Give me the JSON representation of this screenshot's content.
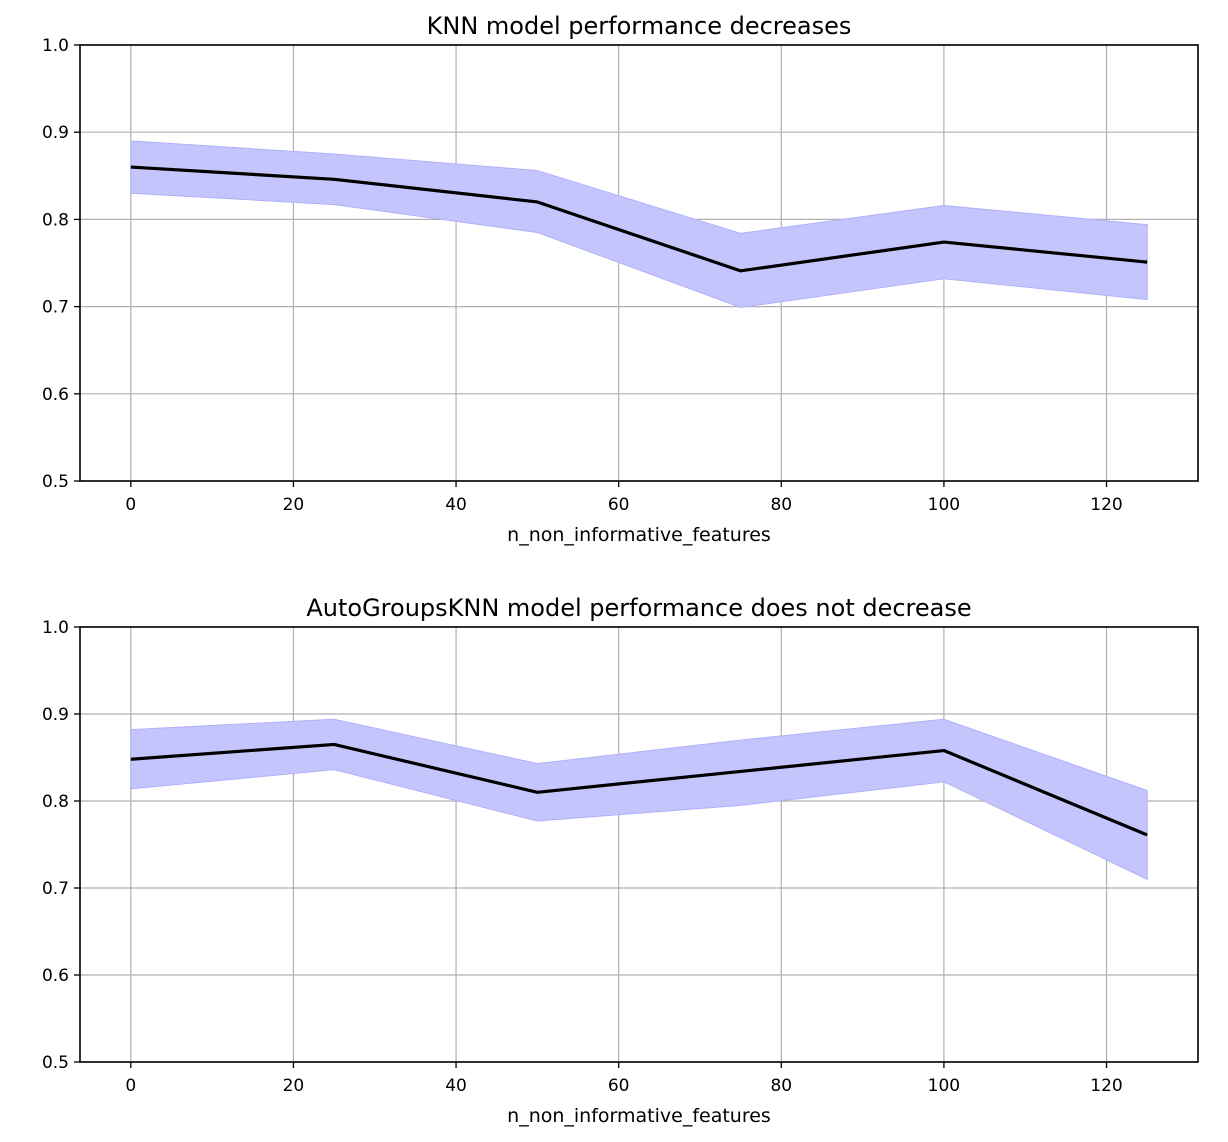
{
  "chart_data": [
    {
      "type": "line",
      "title": "KNN model performance decreases",
      "xlabel": "n_non_informative_features",
      "ylabel": "",
      "xlim": [
        -6.25,
        131.25
      ],
      "ylim": [
        0.5,
        1.0
      ],
      "xticks": [
        0,
        20,
        40,
        60,
        80,
        100,
        120
      ],
      "yticks": [
        0.5,
        0.6,
        0.7,
        0.8,
        0.9,
        1.0
      ],
      "ytick_labels": [
        "0.5",
        "0.6",
        "0.7",
        "0.8",
        "0.9",
        "1.0"
      ],
      "grid": true,
      "x": [
        0,
        25,
        50,
        75,
        100,
        125
      ],
      "series": [
        {
          "values": [
            0.86,
            0.846,
            0.82,
            0.741,
            0.774,
            0.751
          ],
          "lower": [
            0.83,
            0.817,
            0.785,
            0.699,
            0.732,
            0.708
          ],
          "upper": [
            0.89,
            0.875,
            0.856,
            0.784,
            0.816,
            0.794
          ],
          "line_color": "#000000",
          "band_color": "#c5c5fd",
          "band_edge_color": "#b0b0fa"
        }
      ]
    },
    {
      "type": "line",
      "title": "AutoGroupsKNN model performance does not decrease",
      "xlabel": "n_non_informative_features",
      "ylabel": "",
      "xlim": [
        -6.25,
        131.25
      ],
      "ylim": [
        0.5,
        1.0
      ],
      "xticks": [
        0,
        20,
        40,
        60,
        80,
        100,
        120
      ],
      "yticks": [
        0.5,
        0.6,
        0.7,
        0.8,
        0.9,
        1.0
      ],
      "ytick_labels": [
        "0.5",
        "0.6",
        "0.7",
        "0.8",
        "0.9",
        "1.0"
      ],
      "grid": true,
      "x": [
        0,
        25,
        50,
        75,
        100,
        125
      ],
      "series": [
        {
          "values": [
            0.848,
            0.865,
            0.81,
            0.834,
            0.858,
            0.761
          ],
          "lower": [
            0.814,
            0.836,
            0.777,
            0.795,
            0.822,
            0.71
          ],
          "upper": [
            0.882,
            0.894,
            0.843,
            0.87,
            0.894,
            0.812
          ],
          "line_color": "#000000",
          "band_color": "#c5c5fd",
          "band_edge_color": "#b0b0fa"
        }
      ]
    }
  ]
}
